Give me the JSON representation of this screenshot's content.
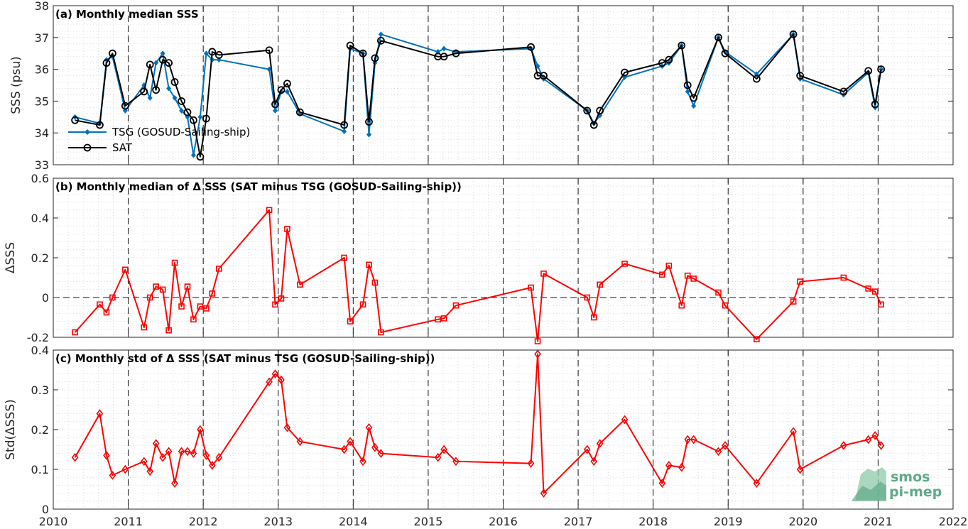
{
  "chart_data": [
    {
      "type": "line",
      "title": "(a) Monthly median SSS",
      "ylabel": "SSS (psu)",
      "ylim": [
        33,
        38
      ],
      "yticks": [
        33,
        34,
        35,
        36,
        37,
        38
      ],
      "xlim": [
        2010,
        2022
      ],
      "xticks": [
        2010,
        2011,
        2012,
        2013,
        2014,
        2015,
        2016,
        2017,
        2018,
        2019,
        2020,
        2021,
        2022
      ],
      "grid": "minor dotted, vertical dashed at years",
      "legend_position": "lower-left",
      "series": [
        {
          "name": "TSG (GOSUD-Sailing-ship)",
          "color": "#0072BD",
          "marker": "diamond-filled",
          "x": [
            2010.29,
            2010.62,
            2010.71,
            2010.79,
            2010.96,
            2011.21,
            2011.29,
            2011.37,
            2011.46,
            2011.54,
            2011.62,
            2011.71,
            2011.79,
            2011.87,
            2011.96,
            2012.04,
            2012.12,
            2012.21,
            2012.88,
            2012.96,
            2013.04,
            2013.12,
            2013.29,
            2013.88,
            2013.96,
            2014.13,
            2014.21,
            2014.29,
            2014.37,
            2015.13,
            2015.21,
            2015.37,
            2016.37,
            2016.46,
            2016.54,
            2017.12,
            2017.21,
            2017.29,
            2017.62,
            2018.12,
            2018.21,
            2018.38,
            2018.46,
            2018.54,
            2018.87,
            2018.96,
            2019.38,
            2019.87,
            2019.96,
            2020.54,
            2020.87,
            2020.96,
            2021.04
          ],
          "y": [
            34.5,
            34.3,
            36.3,
            36.4,
            34.7,
            35.5,
            35.1,
            36.2,
            36.5,
            35.4,
            35.1,
            34.7,
            34.5,
            33.3,
            34.5,
            36.5,
            36.3,
            36.3,
            36.0,
            34.7,
            35.3,
            35.3,
            34.6,
            34.05,
            36.65,
            36.5,
            33.95,
            36.2,
            37.1,
            36.55,
            36.65,
            36.55,
            36.65,
            36.1,
            35.7,
            34.7,
            34.3,
            34.55,
            35.75,
            36.1,
            36.2,
            36.75,
            35.3,
            34.85,
            37.0,
            36.55,
            35.85,
            37.1,
            35.7,
            35.2,
            35.9,
            34.8,
            36.0
          ]
        },
        {
          "name": "SAT",
          "color": "#000000",
          "marker": "circle-open",
          "x": [
            2010.29,
            2010.62,
            2010.71,
            2010.79,
            2010.96,
            2011.21,
            2011.29,
            2011.37,
            2011.46,
            2011.54,
            2011.62,
            2011.71,
            2011.79,
            2011.87,
            2011.96,
            2012.04,
            2012.12,
            2012.21,
            2012.88,
            2012.96,
            2013.04,
            2013.12,
            2013.29,
            2013.88,
            2013.96,
            2014.13,
            2014.21,
            2014.29,
            2014.37,
            2015.13,
            2015.21,
            2015.37,
            2016.37,
            2016.46,
            2016.54,
            2017.12,
            2017.21,
            2017.29,
            2017.62,
            2018.12,
            2018.21,
            2018.38,
            2018.46,
            2018.54,
            2018.87,
            2018.96,
            2019.38,
            2019.87,
            2019.96,
            2020.54,
            2020.87,
            2020.96,
            2021.04
          ],
          "y": [
            34.4,
            34.25,
            36.2,
            36.5,
            34.85,
            35.3,
            36.15,
            35.35,
            36.3,
            36.2,
            35.6,
            35.0,
            34.65,
            34.4,
            33.25,
            34.45,
            36.55,
            36.45,
            36.6,
            34.9,
            35.35,
            35.55,
            34.65,
            34.25,
            36.75,
            36.5,
            34.35,
            36.35,
            36.9,
            36.4,
            36.4,
            36.5,
            36.7,
            35.8,
            35.8,
            34.7,
            34.25,
            34.7,
            35.9,
            36.2,
            36.3,
            36.75,
            35.5,
            35.1,
            37.0,
            36.5,
            35.7,
            37.1,
            35.8,
            35.3,
            35.95,
            34.9,
            36.0
          ]
        }
      ]
    },
    {
      "type": "line",
      "title": "(b) Monthly median of Δ SSS (SAT minus TSG (GOSUD-Sailing-ship))",
      "ylabel": "ΔSSS",
      "ylim": [
        -0.2,
        0.6
      ],
      "yticks": [
        -0.2,
        0,
        0.2,
        0.4,
        0.6
      ],
      "ytick_labels": [
        "-0.2",
        "0",
        "0.2",
        "0.4",
        "0.6"
      ],
      "xlim": [
        2010,
        2022
      ],
      "reference_line": 0,
      "series": [
        {
          "color": "#FF0000",
          "marker": "square-open",
          "x": [
            2010.29,
            2010.62,
            2010.71,
            2010.79,
            2010.96,
            2011.21,
            2011.29,
            2011.37,
            2011.46,
            2011.54,
            2011.62,
            2011.71,
            2011.79,
            2011.87,
            2011.96,
            2012.04,
            2012.12,
            2012.21,
            2012.88,
            2012.96,
            2013.04,
            2013.12,
            2013.29,
            2013.88,
            2013.96,
            2014.13,
            2014.21,
            2014.29,
            2014.37,
            2015.13,
            2015.21,
            2015.37,
            2016.37,
            2016.46,
            2016.54,
            2017.12,
            2017.21,
            2017.29,
            2017.62,
            2018.12,
            2018.21,
            2018.38,
            2018.46,
            2018.54,
            2018.87,
            2018.96,
            2019.38,
            2019.87,
            2019.96,
            2020.54,
            2020.87,
            2020.96,
            2021.04
          ],
          "y": [
            -0.175,
            -0.035,
            -0.075,
            0.0,
            0.14,
            -0.15,
            0.0,
            0.055,
            0.04,
            -0.165,
            0.175,
            -0.045,
            0.055,
            -0.11,
            -0.045,
            -0.055,
            0.02,
            0.145,
            0.44,
            -0.035,
            -0.005,
            0.345,
            0.065,
            0.2,
            -0.12,
            -0.035,
            0.165,
            0.075,
            -0.175,
            -0.11,
            -0.105,
            -0.04,
            0.05,
            -0.22,
            0.12,
            0.0,
            -0.1,
            0.065,
            0.17,
            0.115,
            0.16,
            -0.04,
            0.11,
            0.095,
            0.025,
            -0.04,
            -0.21,
            -0.02,
            0.08,
            0.1,
            0.045,
            0.03,
            -0.035
          ]
        }
      ]
    },
    {
      "type": "line",
      "title": "(c) Monthly std of Δ SSS (SAT minus TSG (GOSUD-Sailing-ship))",
      "ylabel": "Std(ΔSSS)",
      "ylim": [
        0,
        0.4
      ],
      "yticks": [
        0,
        0.1,
        0.2,
        0.3,
        0.4
      ],
      "ytick_labels": [
        "0",
        "0.1",
        "0.2",
        "0.3",
        "0.4"
      ],
      "xlim": [
        2010,
        2022
      ],
      "series": [
        {
          "color": "#FF0000",
          "marker": "diamond-open",
          "x": [
            2010.29,
            2010.62,
            2010.71,
            2010.79,
            2010.96,
            2011.21,
            2011.29,
            2011.37,
            2011.46,
            2011.54,
            2011.62,
            2011.71,
            2011.79,
            2011.87,
            2011.96,
            2012.04,
            2012.12,
            2012.21,
            2012.88,
            2012.96,
            2013.04,
            2013.12,
            2013.29,
            2013.88,
            2013.96,
            2014.13,
            2014.21,
            2014.29,
            2014.37,
            2015.13,
            2015.21,
            2015.37,
            2016.37,
            2016.46,
            2016.54,
            2017.12,
            2017.21,
            2017.29,
            2017.62,
            2018.12,
            2018.21,
            2018.38,
            2018.46,
            2018.54,
            2018.87,
            2018.96,
            2019.38,
            2019.87,
            2019.96,
            2020.54,
            2020.87,
            2020.96,
            2021.04
          ],
          "y": [
            0.13,
            0.24,
            0.135,
            0.085,
            0.1,
            0.12,
            0.095,
            0.165,
            0.13,
            0.145,
            0.065,
            0.145,
            0.145,
            0.14,
            0.2,
            0.135,
            0.11,
            0.13,
            0.32,
            0.34,
            0.325,
            0.205,
            0.17,
            0.15,
            0.17,
            0.12,
            0.205,
            0.155,
            0.14,
            0.13,
            0.15,
            0.12,
            0.115,
            0.39,
            0.04,
            0.15,
            0.12,
            0.165,
            0.225,
            0.065,
            0.11,
            0.105,
            0.175,
            0.175,
            0.145,
            0.16,
            0.065,
            0.195,
            0.1,
            0.16,
            0.175,
            0.185,
            0.16
          ]
        }
      ]
    }
  ],
  "logo": {
    "line1": "smos",
    "line2": "pi-mep"
  }
}
